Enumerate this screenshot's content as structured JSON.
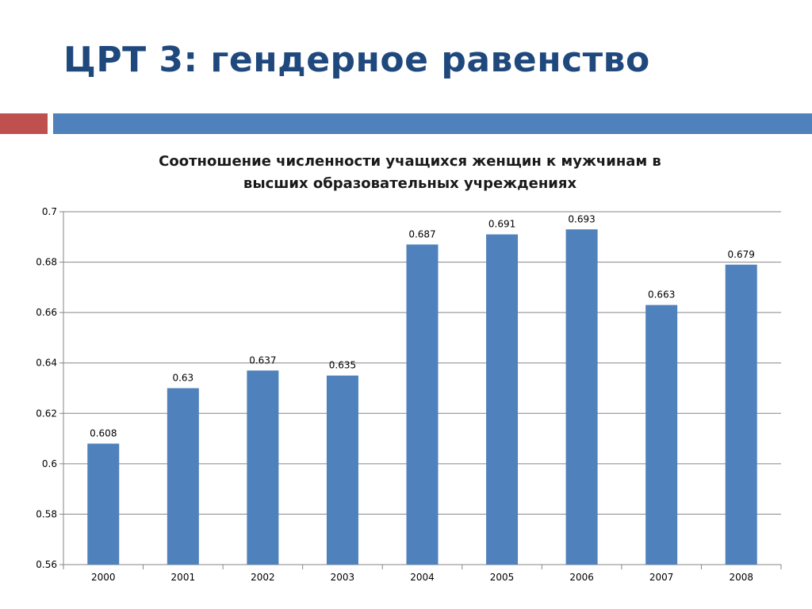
{
  "slide": {
    "title": "ЦРТ 3: гендерное равенство"
  },
  "colors": {
    "title": "#1f497d",
    "accent_red": "#c0504d",
    "accent_blue": "#4f81bd",
    "bar": "#4f81bd",
    "grid": "#868686"
  },
  "chart_data": {
    "type": "bar",
    "title": "Соотношение численности учащихся женщин к мужчинам в высших образовательных учреждениях",
    "title_lines": [
      "Соотношение численности учащихся женщин к мужчинам в",
      "высших образовательных учреждениях"
    ],
    "xlabel": "",
    "ylabel": "",
    "categories": [
      "2000",
      "2001",
      "2002",
      "2003",
      "2004",
      "2005",
      "2006",
      "2007",
      "2008"
    ],
    "values": [
      0.608,
      0.63,
      0.637,
      0.635,
      0.687,
      0.691,
      0.693,
      0.663,
      0.679
    ],
    "data_labels": [
      "0.608",
      "0.63",
      "0.637",
      "0.635",
      "0.687",
      "0.691",
      "0.693",
      "0.663",
      "0.679"
    ],
    "ylim": [
      0.56,
      0.7
    ],
    "yticks": [
      0.56,
      0.58,
      0.6,
      0.62,
      0.64,
      0.66,
      0.68,
      0.7
    ],
    "ytick_labels": [
      "0.56",
      "0.58",
      "0.6",
      "0.62",
      "0.64",
      "0.66",
      "0.68",
      "0.7"
    ],
    "grid": true,
    "legend": false
  }
}
